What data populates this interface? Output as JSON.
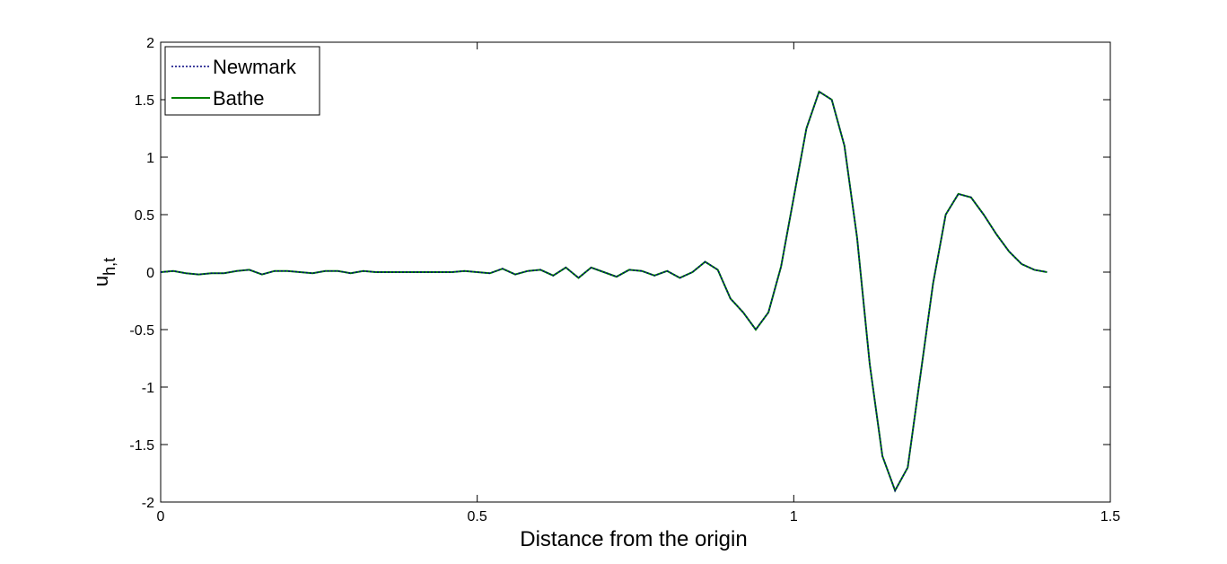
{
  "chart_data": {
    "type": "line",
    "xlabel": "Distance from the origin",
    "ylabel": "u",
    "ylabel_subscript": "h,t",
    "xlim": [
      0,
      1.5
    ],
    "ylim": [
      -2,
      2
    ],
    "xticks": [
      0,
      0.5,
      1,
      1.5
    ],
    "yticks": [
      -2,
      -1.5,
      -1,
      -0.5,
      0,
      0.5,
      1,
      1.5,
      2
    ],
    "legend": "upper-left",
    "x": [
      0,
      0.02,
      0.04,
      0.06,
      0.08,
      0.1,
      0.12,
      0.14,
      0.16,
      0.18,
      0.2,
      0.22,
      0.24,
      0.26,
      0.28,
      0.3,
      0.32,
      0.34,
      0.36,
      0.38,
      0.4,
      0.42,
      0.44,
      0.46,
      0.48,
      0.5,
      0.52,
      0.54,
      0.56,
      0.58,
      0.6,
      0.62,
      0.64,
      0.66,
      0.68,
      0.7,
      0.72,
      0.74,
      0.76,
      0.78,
      0.8,
      0.82,
      0.84,
      0.86,
      0.88,
      0.9,
      0.92,
      0.94,
      0.96,
      0.98,
      1.0,
      1.02,
      1.04,
      1.06,
      1.08,
      1.1,
      1.12,
      1.14,
      1.16,
      1.18,
      1.2,
      1.22,
      1.24,
      1.26,
      1.28,
      1.3,
      1.32,
      1.34,
      1.36,
      1.38,
      1.4
    ],
    "series": [
      {
        "name": "Newmark",
        "color": "#00007f",
        "dash": "dotted",
        "values": [
          0,
          0.01,
          -0.01,
          -0.02,
          -0.01,
          -0.01,
          0.01,
          0.02,
          -0.02,
          0.01,
          0.01,
          0,
          -0.01,
          0.01,
          0.01,
          -0.01,
          0.01,
          0,
          0,
          0,
          0,
          0,
          0,
          0,
          0.01,
          0,
          -0.01,
          0.03,
          -0.02,
          0.01,
          0.02,
          -0.03,
          0.04,
          -0.05,
          0.04,
          0,
          -0.04,
          0.02,
          0.01,
          -0.03,
          0.01,
          -0.05,
          0,
          0.09,
          0.02,
          -0.23,
          -0.35,
          -0.5,
          -0.35,
          0.05,
          0.65,
          1.25,
          1.57,
          1.5,
          1.1,
          0.3,
          -0.8,
          -1.6,
          -1.9,
          -1.7,
          -0.9,
          -0.1,
          0.5,
          0.68,
          0.65,
          0.5,
          0.33,
          0.18,
          0.07,
          0.02,
          0
        ]
      },
      {
        "name": "Bathe",
        "color": "#007f00",
        "dash": "solid",
        "values": [
          0,
          0.01,
          -0.01,
          -0.02,
          -0.01,
          -0.01,
          0.01,
          0.02,
          -0.02,
          0.01,
          0.01,
          0,
          -0.01,
          0.01,
          0.01,
          -0.01,
          0.01,
          0,
          0,
          0,
          0,
          0,
          0,
          0,
          0.01,
          0,
          -0.01,
          0.03,
          -0.02,
          0.01,
          0.02,
          -0.03,
          0.04,
          -0.05,
          0.04,
          0,
          -0.04,
          0.02,
          0.01,
          -0.03,
          0.01,
          -0.05,
          0,
          0.09,
          0.02,
          -0.23,
          -0.35,
          -0.5,
          -0.35,
          0.05,
          0.65,
          1.25,
          1.57,
          1.5,
          1.1,
          0.3,
          -0.8,
          -1.6,
          -1.9,
          -1.7,
          -0.9,
          -0.1,
          0.5,
          0.68,
          0.65,
          0.5,
          0.33,
          0.18,
          0.07,
          0.02,
          0
        ]
      }
    ]
  }
}
